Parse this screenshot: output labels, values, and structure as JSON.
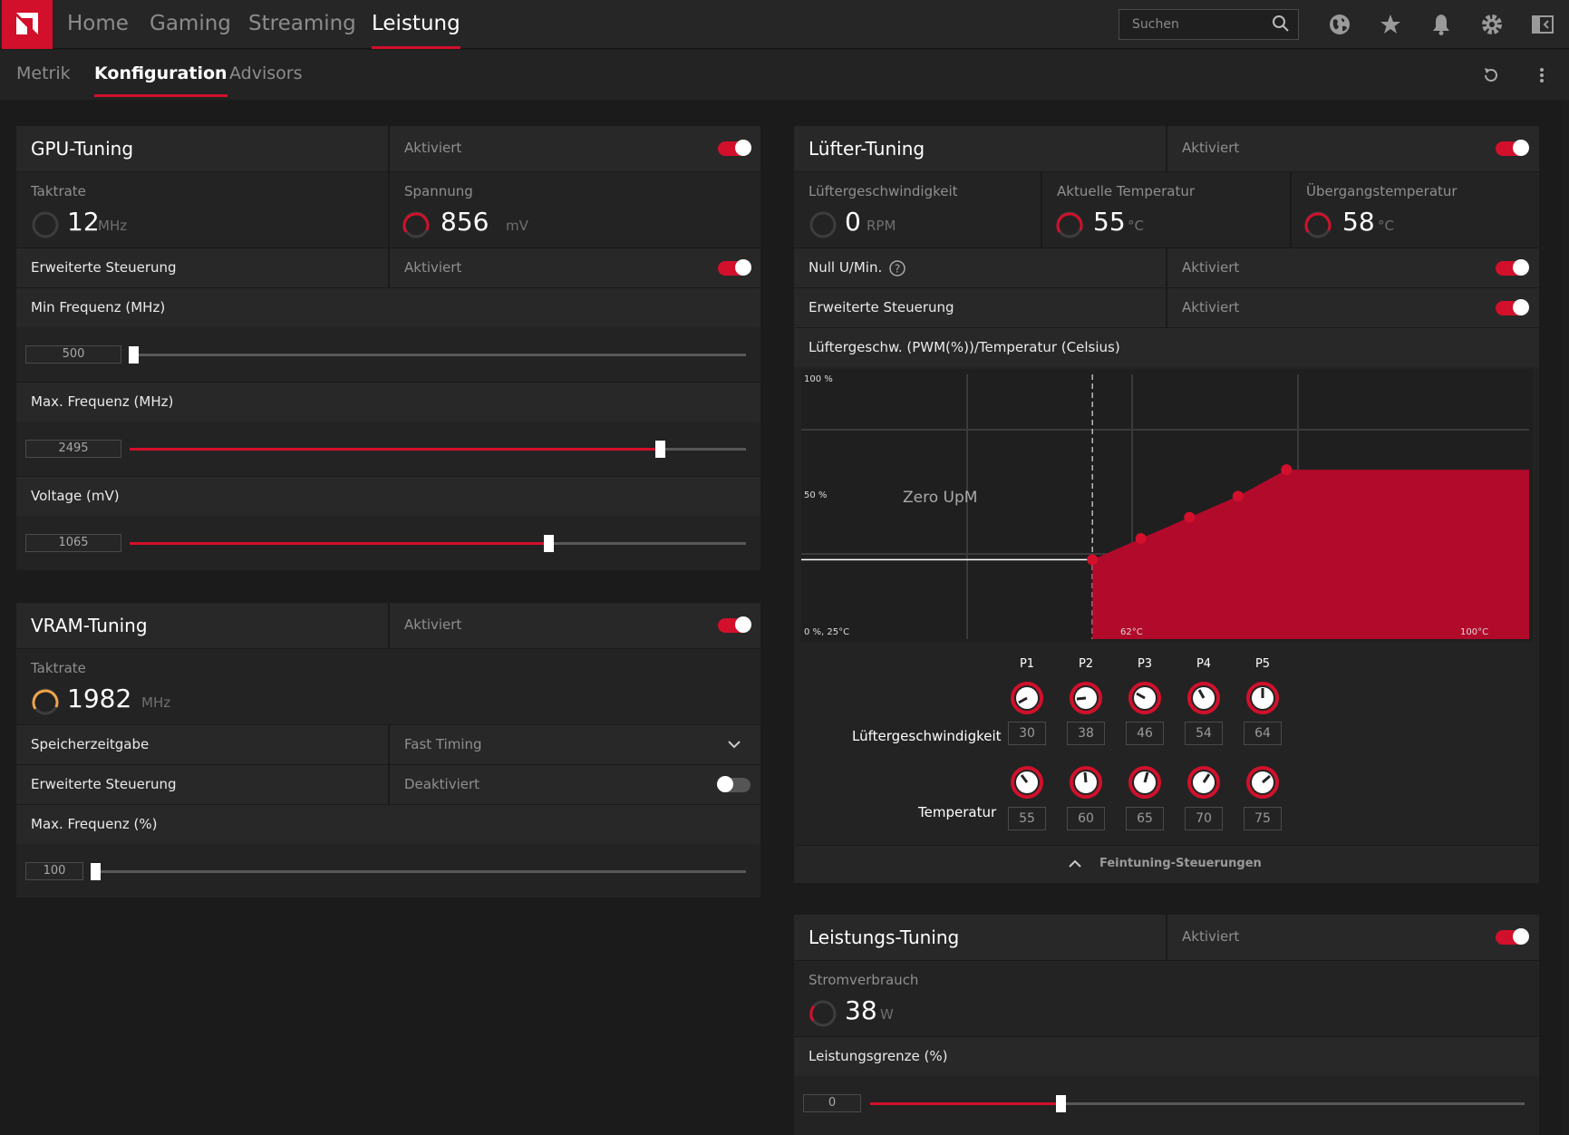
{
  "nav": {
    "home": "Home",
    "gaming": "Gaming",
    "streaming": "Streaming",
    "leistung": "Leistung"
  },
  "search": {
    "placeholder": "Suchen"
  },
  "tabs": {
    "metrik": "Metrik",
    "konfiguration": "Konfiguration",
    "advisors": "Advisors"
  },
  "gpu": {
    "title": "GPU-Tuning",
    "status": "Aktiviert",
    "clock": {
      "label": "Taktrate",
      "value": "12",
      "unit": "MHz"
    },
    "voltage": {
      "label": "Spannung",
      "value": "856",
      "unit": "mV"
    },
    "advanced": {
      "label": "Erweiterte Steuerung",
      "status": "Aktiviert"
    },
    "min_freq": {
      "label": "Min Frequenz (MHz)",
      "value": "500",
      "fraction": 0.0
    },
    "max_freq": {
      "label": "Max. Frequenz (MHz)",
      "value": "2495",
      "fraction": 0.74
    },
    "voltage_slider": {
      "label": "Voltage (mV)",
      "value": "1065",
      "fraction": 0.68
    }
  },
  "vram": {
    "title": "VRAM-Tuning",
    "status": "Aktiviert",
    "clock": {
      "label": "Taktrate",
      "value": "1982",
      "unit": "MHz"
    },
    "timing": {
      "label": "Speicherzeitgabe",
      "value": "Fast Timing"
    },
    "advanced": {
      "label": "Erweiterte Steuerung",
      "status": "Deaktiviert"
    },
    "max_freq": {
      "label": "Max. Frequenz (%)",
      "value": "100",
      "fraction": 0.0
    }
  },
  "fan": {
    "title": "Lüfter-Tuning",
    "status": "Aktiviert",
    "speed": {
      "label": "Lüftergeschwindigkeit",
      "value": "0",
      "unit": "RPM"
    },
    "temp": {
      "label": "Aktuelle Temperatur",
      "value": "55",
      "unit": "°C"
    },
    "junction": {
      "label": "Übergangstemperatur",
      "value": "58",
      "unit": "°C"
    },
    "zero_rpm": {
      "label": "Null U/Min.",
      "status": "Aktiviert"
    },
    "advanced": {
      "label": "Erweiterte Steuerung",
      "status": "Aktiviert"
    },
    "chart_title": "Lüftergeschw. (PWM(%))/Temperatur (Celsius)",
    "points": [
      "P1",
      "P2",
      "P3",
      "P4",
      "P5"
    ],
    "speed_row_label": "Lüftergeschwindigkeit",
    "temp_row_label": "Temperatur",
    "speeds": [
      "30",
      "38",
      "46",
      "54",
      "64"
    ],
    "temps": [
      "55",
      "60",
      "65",
      "70",
      "75"
    ],
    "fine_tuning": "Feintuning-Steuerungen"
  },
  "chart_data": {
    "type": "area",
    "x": [
      25,
      55,
      60,
      65,
      70,
      75,
      100
    ],
    "y": [
      30,
      30,
      38,
      46,
      54,
      64,
      64
    ],
    "xlim": [
      25,
      100
    ],
    "ylim": [
      0,
      100
    ],
    "y_ticks": [
      "100 %",
      "50 %",
      "0 %, 25°C"
    ],
    "x_ticks": [
      "62°C",
      "100°C"
    ],
    "annotation": "Zero UpM",
    "zero_rpm_until": 55
  },
  "power": {
    "title": "Leistungs-Tuning",
    "status": "Aktiviert",
    "consumption": {
      "label": "Stromverbrauch",
      "value": "38",
      "unit": "W"
    },
    "limit": {
      "label": "Leistungsgrenze (%)",
      "value": "0",
      "fraction": 0.29
    }
  },
  "colors": {
    "accent": "#d2102b",
    "vram_ring": "#f0a54a",
    "curve_fill": "#b10a2b"
  }
}
